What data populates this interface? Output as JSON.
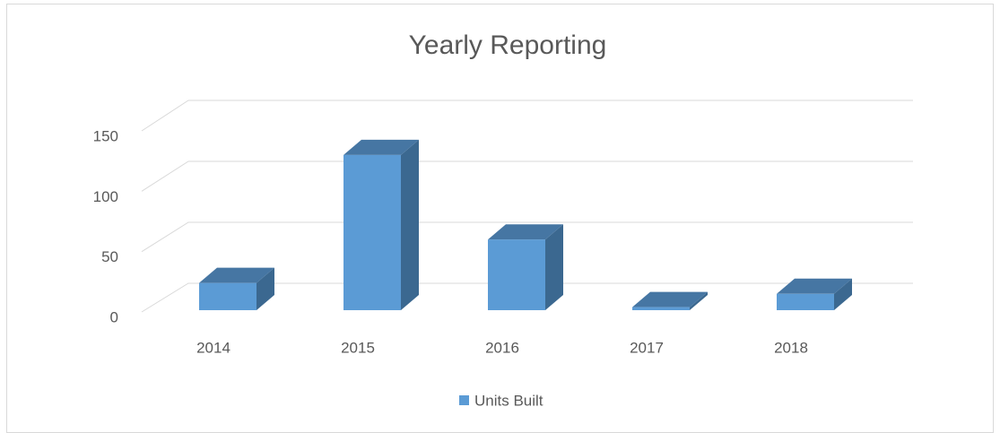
{
  "chart_data": {
    "type": "bar3d",
    "title": "Yearly Reporting",
    "categories": [
      "2014",
      "2015",
      "2016",
      "2017",
      "2018"
    ],
    "series": [
      {
        "name": "Units Built",
        "color": "#5b9bd5",
        "values": [
          24,
          130,
          60,
          4,
          15
        ]
      }
    ],
    "ylim": [
      0,
      150
    ],
    "yticks": [
      0,
      50,
      100,
      150
    ],
    "grid": true,
    "legend": "bottom"
  }
}
